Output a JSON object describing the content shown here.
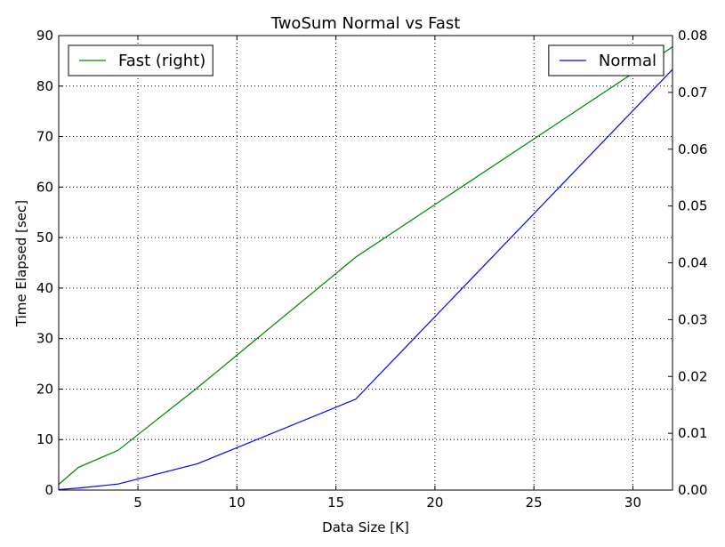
{
  "chart_data": {
    "type": "line",
    "title": "TwoSum Normal vs Fast",
    "xlabel": "Data Size [K]",
    "ylabel": "Time Elapsed [sec]",
    "xlim": [
      1,
      32
    ],
    "xticks": [
      5,
      10,
      15,
      20,
      25,
      30
    ],
    "ylim_left": [
      0,
      90
    ],
    "yticks_left": [
      0,
      10,
      20,
      30,
      40,
      50,
      60,
      70,
      80,
      90
    ],
    "ylim_right": [
      0,
      0.08
    ],
    "yticks_right": [
      "0.00",
      "0.01",
      "0.02",
      "0.03",
      "0.04",
      "0.05",
      "0.06",
      "0.07",
      "0.08"
    ],
    "grid": true,
    "series": [
      {
        "name": "Normal",
        "axis": "left",
        "color": "#0000ff",
        "legend_position": "top-right",
        "x": [
          1,
          2,
          4,
          8,
          16,
          32
        ],
        "y": [
          0.1,
          0.4,
          1.2,
          5.2,
          18.0,
          83.3
        ]
      },
      {
        "name": "Fast (right)",
        "axis": "right",
        "color": "#008000",
        "legend_position": "top-left",
        "x": [
          1,
          2,
          4,
          8,
          16,
          32
        ],
        "y": [
          0.001,
          0.004,
          0.007,
          0.018,
          0.041,
          0.078
        ]
      }
    ]
  }
}
